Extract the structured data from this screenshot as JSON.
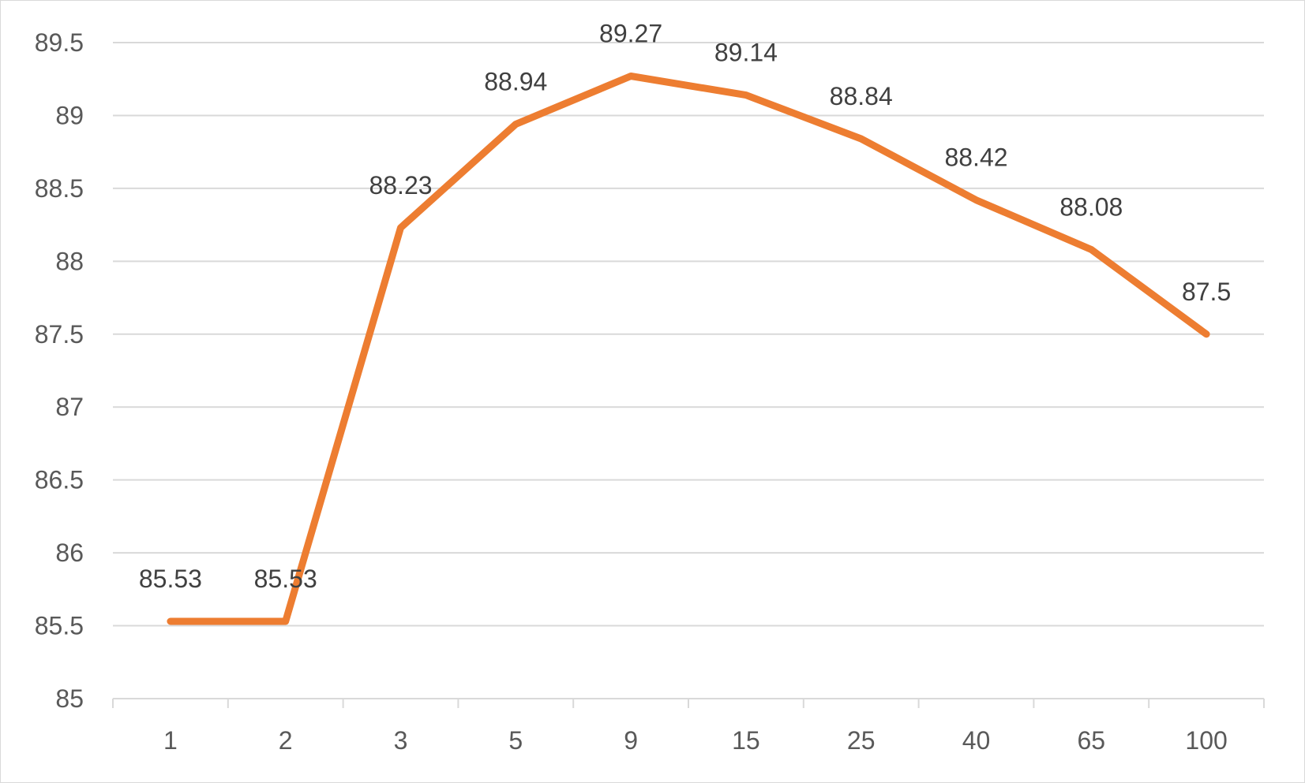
{
  "chart_data": {
    "type": "line",
    "title": "",
    "xlabel": "",
    "ylabel": "",
    "categories": [
      "1",
      "2",
      "3",
      "5",
      "9",
      "15",
      "25",
      "40",
      "65",
      "100"
    ],
    "series": [
      {
        "values": [
          85.53,
          85.53,
          88.23,
          88.94,
          89.27,
          89.14,
          88.84,
          88.42,
          88.08,
          87.5
        ],
        "data_labels": [
          "85.53",
          "85.53",
          "88.23",
          "88.94",
          "89.27",
          "89.14",
          "88.84",
          "88.42",
          "88.08",
          "87.5"
        ],
        "color": "#ed7d31"
      }
    ],
    "ylim": [
      85,
      89.5
    ],
    "y_ticks": [
      "85",
      "85.5",
      "86",
      "86.5",
      "87",
      "87.5",
      "88",
      "88.5",
      "89",
      "89.5"
    ],
    "grid": true,
    "legend": "none"
  }
}
